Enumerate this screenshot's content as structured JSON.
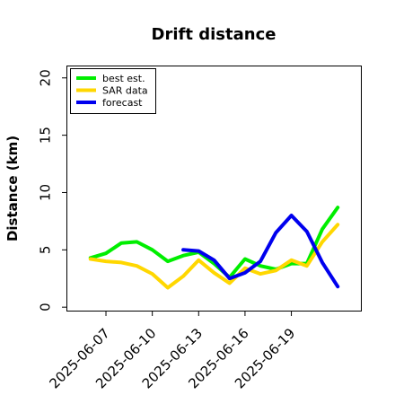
{
  "chart_data": {
    "type": "line",
    "title": "Drift distance",
    "xlabel": "",
    "ylabel": "Distance (km)",
    "x_ticks": [
      "2025-06-07",
      "2025-06-10",
      "2025-06-13",
      "2025-06-16",
      "2025-06-19"
    ],
    "y_ticks": [
      "0",
      "5",
      "10",
      "15",
      "20"
    ],
    "xlim": [
      "2025-06-04T12:00",
      "2025-06-23T12:00"
    ],
    "ylim": [
      -0.3,
      21
    ],
    "grid": false,
    "legend_position": "top-left",
    "series": [
      {
        "name": "best est.",
        "color": "#00ee00",
        "points": [
          [
            "2025-06-06",
            4.3
          ],
          [
            "2025-06-07",
            4.7
          ],
          [
            "2025-06-08",
            5.6
          ],
          [
            "2025-06-09",
            5.7
          ],
          [
            "2025-06-10",
            5.0
          ],
          [
            "2025-06-11",
            4.0
          ],
          [
            "2025-06-12",
            4.5
          ],
          [
            "2025-06-13",
            4.8
          ],
          [
            "2025-06-14",
            3.8
          ],
          [
            "2025-06-15",
            2.6
          ],
          [
            "2025-06-16",
            4.2
          ],
          [
            "2025-06-17",
            3.6
          ],
          [
            "2025-06-18",
            3.3
          ],
          [
            "2025-06-19",
            3.8
          ],
          [
            "2025-06-20",
            3.8
          ],
          [
            "2025-06-21",
            6.8
          ],
          [
            "2025-06-22",
            8.7
          ]
        ]
      },
      {
        "name": "SAR data",
        "color": "#ffd700",
        "points": [
          [
            "2025-06-06",
            4.2
          ],
          [
            "2025-06-07",
            4.0
          ],
          [
            "2025-06-08",
            3.9
          ],
          [
            "2025-06-09",
            3.6
          ],
          [
            "2025-06-10",
            2.9
          ],
          [
            "2025-06-11",
            1.7
          ],
          [
            "2025-06-12",
            2.7
          ],
          [
            "2025-06-13",
            4.1
          ],
          [
            "2025-06-14",
            3.0
          ],
          [
            "2025-06-15",
            2.1
          ],
          [
            "2025-06-16",
            3.4
          ],
          [
            "2025-06-17",
            2.9
          ],
          [
            "2025-06-18",
            3.2
          ],
          [
            "2025-06-19",
            4.1
          ],
          [
            "2025-06-20",
            3.6
          ],
          [
            "2025-06-21",
            5.7
          ],
          [
            "2025-06-22",
            7.2
          ]
        ]
      },
      {
        "name": "forecast",
        "color": "#0000ee",
        "points": [
          [
            "2025-06-12",
            5.0
          ],
          [
            "2025-06-13",
            4.9
          ],
          [
            "2025-06-14",
            4.1
          ],
          [
            "2025-06-15",
            2.5
          ],
          [
            "2025-06-16",
            3.0
          ],
          [
            "2025-06-17",
            4.0
          ],
          [
            "2025-06-18",
            6.5
          ],
          [
            "2025-06-19",
            8.0
          ],
          [
            "2025-06-20",
            6.6
          ],
          [
            "2025-06-21",
            3.9
          ],
          [
            "2025-06-22",
            1.8
          ]
        ]
      }
    ]
  }
}
